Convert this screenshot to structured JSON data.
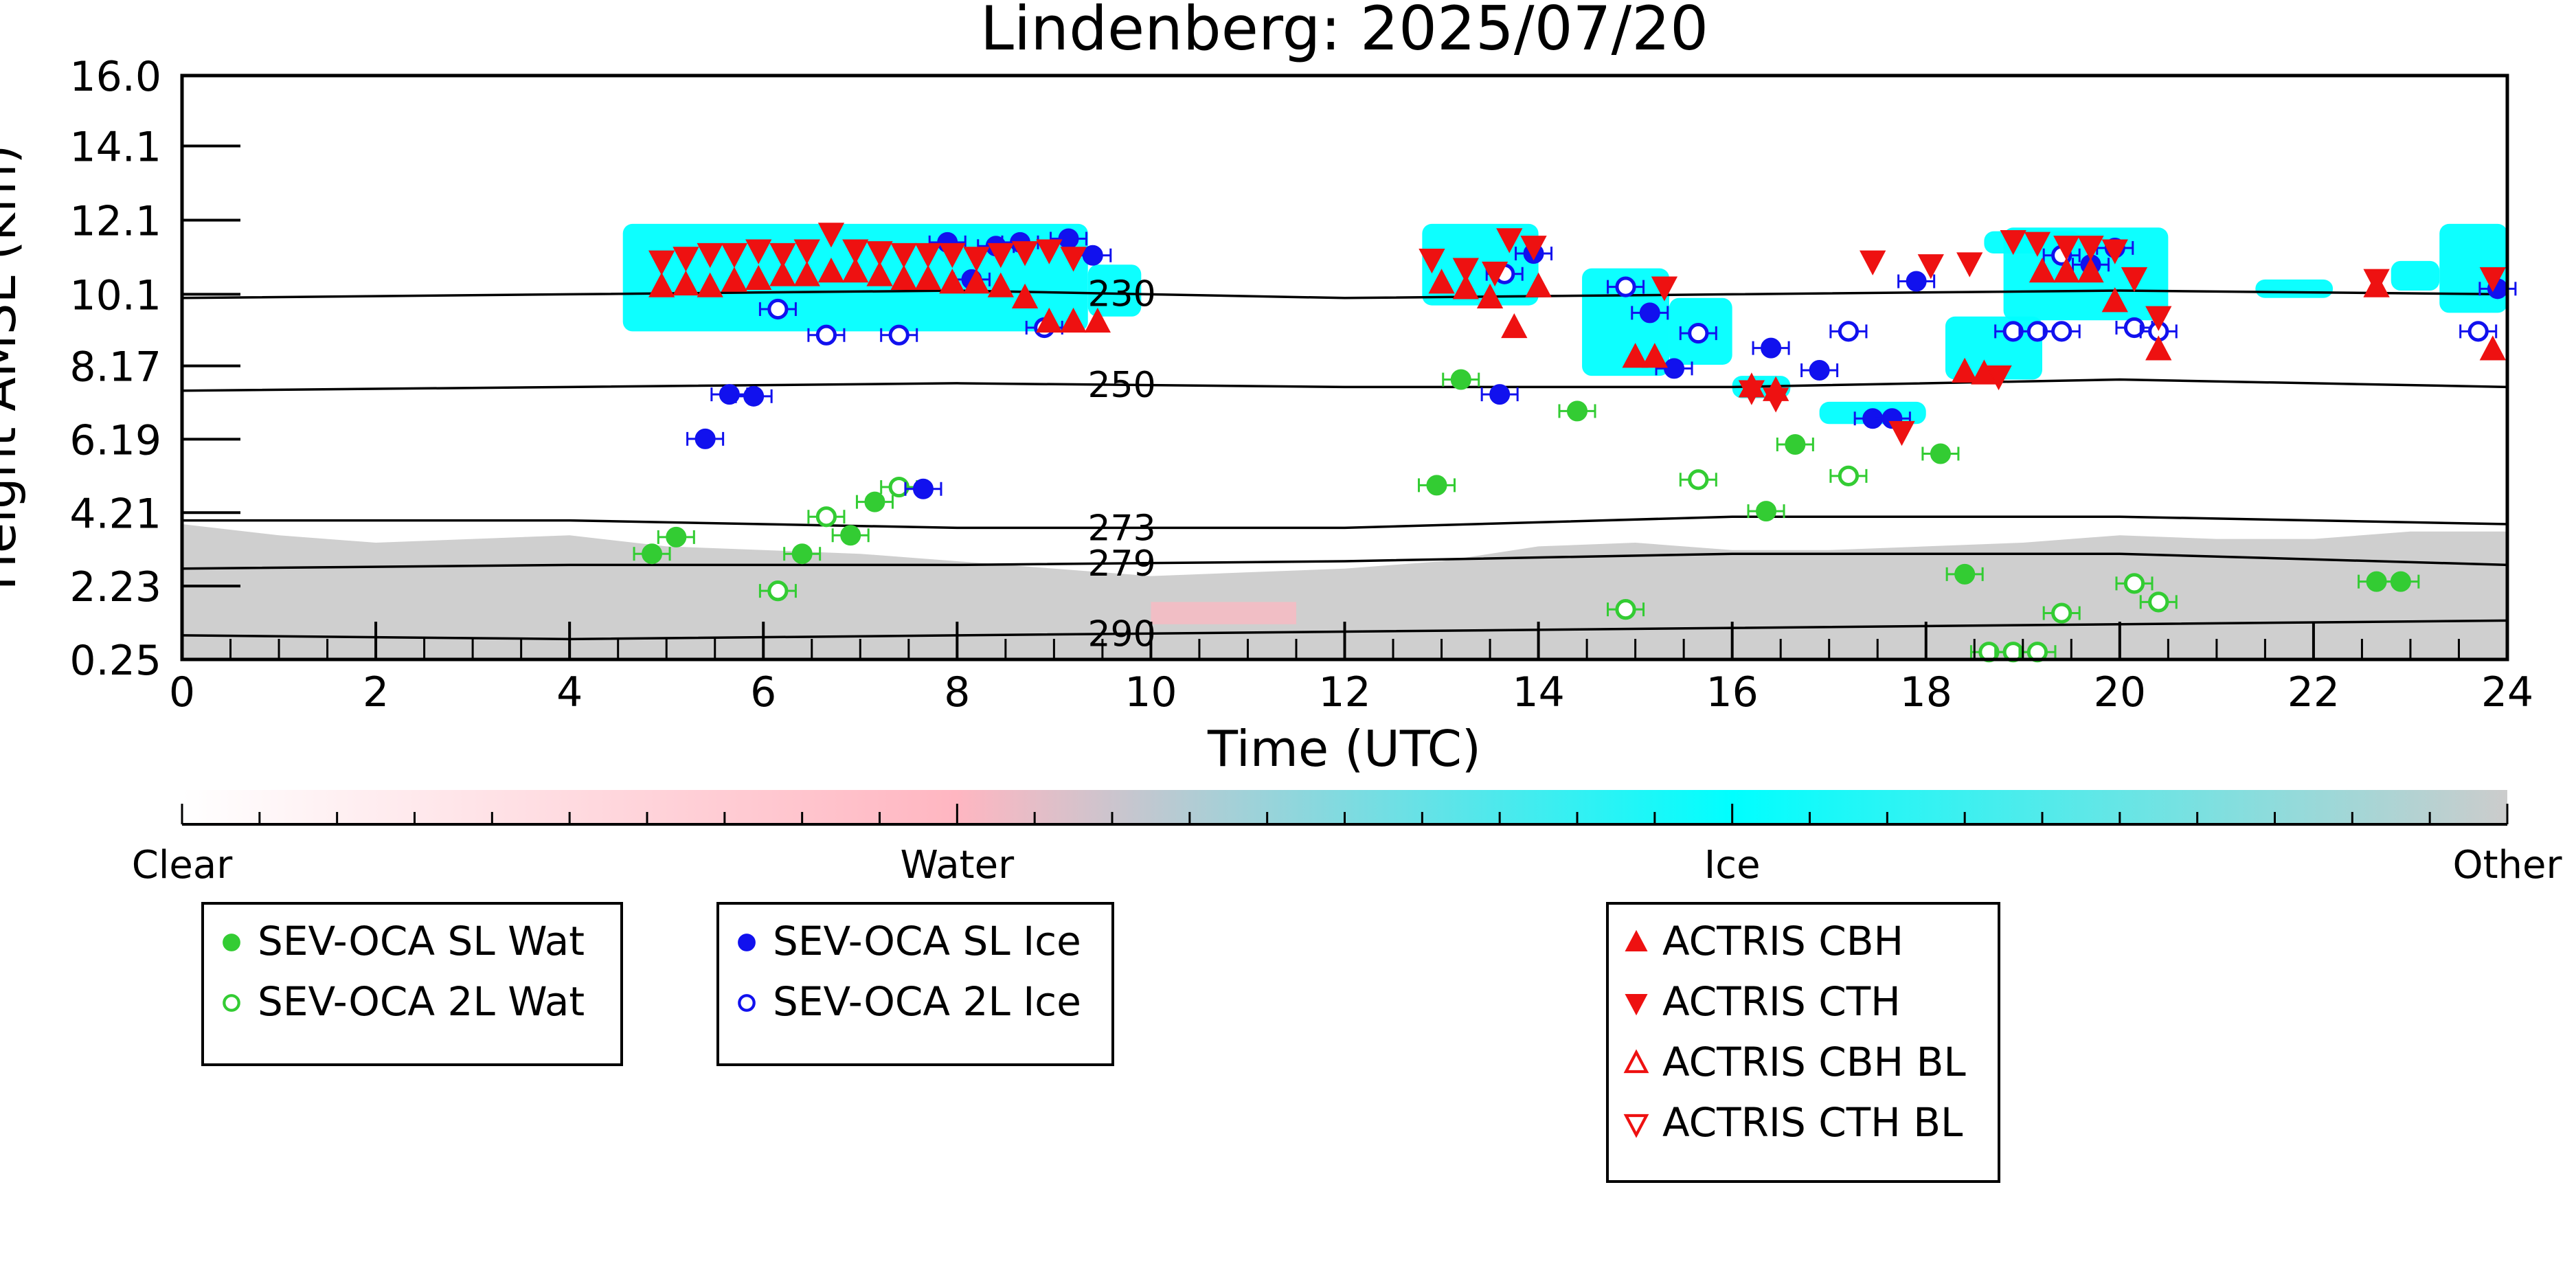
{
  "chart_data": {
    "type": "scatter",
    "title": "Lindenberg: 2025/07/20",
    "xlabel": "Time (UTC)",
    "ylabel": "Height AMSL (km)",
    "xlim": [
      0,
      24
    ],
    "ylim": [
      0.25,
      16.0
    ],
    "x_ticks": [
      "0",
      "2",
      "4",
      "6",
      "8",
      "10",
      "12",
      "14",
      "16",
      "18",
      "20",
      "22",
      "24"
    ],
    "y_ticks": [
      "0.25",
      "2.23",
      "4.21",
      "6.19",
      "8.17",
      "10.1",
      "12.1",
      "14.1",
      "16.0"
    ],
    "grid": false,
    "colorbar": {
      "labels": [
        "Clear",
        "Water",
        "Ice",
        "Other"
      ],
      "colors": [
        "#ffffff",
        "#ffb6c1",
        "#00ffff",
        "#cccccc"
      ]
    },
    "temperature_contours": [
      {
        "label": "230",
        "x": [
          0,
          4,
          8,
          12,
          16,
          20,
          24
        ],
        "y": [
          10.0,
          10.1,
          10.2,
          10.0,
          10.1,
          10.2,
          10.1
        ]
      },
      {
        "label": "250",
        "x": [
          0,
          4,
          8,
          12,
          16,
          20,
          24
        ],
        "y": [
          7.5,
          7.6,
          7.7,
          7.6,
          7.6,
          7.8,
          7.6
        ]
      },
      {
        "label": "273",
        "x": [
          0,
          4,
          8,
          12,
          16,
          20,
          24
        ],
        "y": [
          4.0,
          4.0,
          3.8,
          3.8,
          4.1,
          4.1,
          3.9
        ]
      },
      {
        "label": "279",
        "x": [
          0,
          4,
          8,
          12,
          16,
          20,
          24
        ],
        "y": [
          2.7,
          2.8,
          2.8,
          2.9,
          3.1,
          3.1,
          2.8
        ]
      },
      {
        "label": "290",
        "x": [
          0,
          4,
          8,
          12,
          16,
          20,
          24
        ],
        "y": [
          0.9,
          0.8,
          0.9,
          1.0,
          1.1,
          1.2,
          1.3
        ]
      }
    ],
    "series": [
      {
        "name": "SEV-OCA SL Wat",
        "color": "#33cc33",
        "marker": "circle-filled",
        "points": [
          [
            4.85,
            3.1
          ],
          [
            5.1,
            3.55
          ],
          [
            6.4,
            3.1
          ],
          [
            6.9,
            3.6
          ],
          [
            7.15,
            4.5
          ],
          [
            12.95,
            4.95
          ],
          [
            13.2,
            7.8
          ],
          [
            14.4,
            6.95
          ],
          [
            16.35,
            4.25
          ],
          [
            16.65,
            6.05
          ],
          [
            18.15,
            5.8
          ],
          [
            18.4,
            2.55
          ],
          [
            22.65,
            2.35
          ],
          [
            22.9,
            2.35
          ]
        ]
      },
      {
        "name": "SEV-OCA 2L Wat",
        "color": "#33cc33",
        "marker": "circle-open",
        "points": [
          [
            6.15,
            2.1
          ],
          [
            6.65,
            4.1
          ],
          [
            7.4,
            4.9
          ],
          [
            14.9,
            1.6
          ],
          [
            15.65,
            5.1
          ],
          [
            17.2,
            5.2
          ],
          [
            19.4,
            1.5
          ],
          [
            20.15,
            2.3
          ],
          [
            20.4,
            1.8
          ],
          [
            18.65,
            0.45
          ],
          [
            18.9,
            0.45
          ],
          [
            19.15,
            0.45
          ]
        ]
      },
      {
        "name": "SEV-OCA SL Ice",
        "color": "#1111ee",
        "marker": "circle-filled",
        "points": [
          [
            5.4,
            6.2
          ],
          [
            5.65,
            7.4
          ],
          [
            5.9,
            7.35
          ],
          [
            7.65,
            4.85
          ],
          [
            7.9,
            11.5
          ],
          [
            8.15,
            10.5
          ],
          [
            8.4,
            11.4
          ],
          [
            8.65,
            11.5
          ],
          [
            9.15,
            11.6
          ],
          [
            9.4,
            11.15
          ],
          [
            13.6,
            7.4
          ],
          [
            13.95,
            11.2
          ],
          [
            15.15,
            9.6
          ],
          [
            15.4,
            8.1
          ],
          [
            16.4,
            8.65
          ],
          [
            16.9,
            8.05
          ],
          [
            17.45,
            6.75
          ],
          [
            17.65,
            6.75
          ],
          [
            17.9,
            10.45
          ],
          [
            19.7,
            10.9
          ],
          [
            19.95,
            11.35
          ],
          [
            23.9,
            10.25
          ]
        ]
      },
      {
        "name": "SEV-OCA 2L Ice",
        "color": "#1111ee",
        "marker": "circle-open",
        "points": [
          [
            6.15,
            9.7
          ],
          [
            6.65,
            9.0
          ],
          [
            7.4,
            9.0
          ],
          [
            8.9,
            9.2
          ],
          [
            13.65,
            10.65
          ],
          [
            14.9,
            10.3
          ],
          [
            15.65,
            9.05
          ],
          [
            17.2,
            9.1
          ],
          [
            18.9,
            9.1
          ],
          [
            19.15,
            9.1
          ],
          [
            19.4,
            9.1
          ],
          [
            19.4,
            11.15
          ],
          [
            20.15,
            9.2
          ],
          [
            20.4,
            9.1
          ],
          [
            23.7,
            9.1
          ]
        ]
      },
      {
        "name": "ACTRIS CBH",
        "color": "#ee1111",
        "marker": "triangle-up-filled",
        "points": [
          [
            4.95,
            10.3
          ],
          [
            5.2,
            10.35
          ],
          [
            5.45,
            10.3
          ],
          [
            5.7,
            10.45
          ],
          [
            5.95,
            10.5
          ],
          [
            6.2,
            10.6
          ],
          [
            6.45,
            10.6
          ],
          [
            6.7,
            10.7
          ],
          [
            6.95,
            10.7
          ],
          [
            7.2,
            10.6
          ],
          [
            7.45,
            10.5
          ],
          [
            7.7,
            10.5
          ],
          [
            7.95,
            10.4
          ],
          [
            8.2,
            10.4
          ],
          [
            8.45,
            10.3
          ],
          [
            8.7,
            10.0
          ],
          [
            8.95,
            9.35
          ],
          [
            9.2,
            9.35
          ],
          [
            9.45,
            9.35
          ],
          [
            13.0,
            10.4
          ],
          [
            13.25,
            10.25
          ],
          [
            13.5,
            10.0
          ],
          [
            13.75,
            9.2
          ],
          [
            14.0,
            10.3
          ],
          [
            15.0,
            8.4
          ],
          [
            15.2,
            8.4
          ],
          [
            16.2,
            7.6
          ],
          [
            16.45,
            7.5
          ],
          [
            18.4,
            8.0
          ],
          [
            18.6,
            7.95
          ],
          [
            19.2,
            10.7
          ],
          [
            19.45,
            10.7
          ],
          [
            19.7,
            10.7
          ],
          [
            19.95,
            9.9
          ],
          [
            20.4,
            8.6
          ],
          [
            22.65,
            10.3
          ],
          [
            23.85,
            8.6
          ]
        ]
      },
      {
        "name": "ACTRIS CTH",
        "color": "#ee1111",
        "marker": "triangle-down-filled",
        "points": [
          [
            4.95,
            11.0
          ],
          [
            5.2,
            11.1
          ],
          [
            5.45,
            11.2
          ],
          [
            5.7,
            11.2
          ],
          [
            5.95,
            11.3
          ],
          [
            6.2,
            11.2
          ],
          [
            6.45,
            11.3
          ],
          [
            6.7,
            11.75
          ],
          [
            6.95,
            11.3
          ],
          [
            7.2,
            11.25
          ],
          [
            7.45,
            11.2
          ],
          [
            7.7,
            11.2
          ],
          [
            7.95,
            11.2
          ],
          [
            8.2,
            11.1
          ],
          [
            8.45,
            11.2
          ],
          [
            8.7,
            11.25
          ],
          [
            8.95,
            11.3
          ],
          [
            9.2,
            11.1
          ],
          [
            12.9,
            11.05
          ],
          [
            13.25,
            10.8
          ],
          [
            13.55,
            10.7
          ],
          [
            13.7,
            11.6
          ],
          [
            13.95,
            11.4
          ],
          [
            15.3,
            10.3
          ],
          [
            16.2,
            7.5
          ],
          [
            16.45,
            7.3
          ],
          [
            17.75,
            6.4
          ],
          [
            17.45,
            11.0
          ],
          [
            18.05,
            10.9
          ],
          [
            18.45,
            10.95
          ],
          [
            18.75,
            7.9
          ],
          [
            18.9,
            11.55
          ],
          [
            19.15,
            11.5
          ],
          [
            19.45,
            11.4
          ],
          [
            19.7,
            11.4
          ],
          [
            19.95,
            11.3
          ],
          [
            20.15,
            10.55
          ],
          [
            20.4,
            9.5
          ],
          [
            22.65,
            10.5
          ],
          [
            23.85,
            10.55
          ]
        ]
      },
      {
        "name": "ACTRIS CBH BL",
        "color": "#ee1111",
        "marker": "triangle-up-open",
        "points": []
      },
      {
        "name": "ACTRIS CTH BL",
        "color": "#ee1111",
        "marker": "triangle-down-open",
        "points": []
      }
    ]
  },
  "legend_groups": [
    [
      "SEV-OCA SL Wat",
      "SEV-OCA 2L Wat"
    ],
    [
      "SEV-OCA SL Ice",
      "SEV-OCA 2L Ice"
    ],
    [
      "ACTRIS CBH",
      "ACTRIS CTH",
      "ACTRIS CBH BL",
      "ACTRIS CTH BL"
    ]
  ]
}
